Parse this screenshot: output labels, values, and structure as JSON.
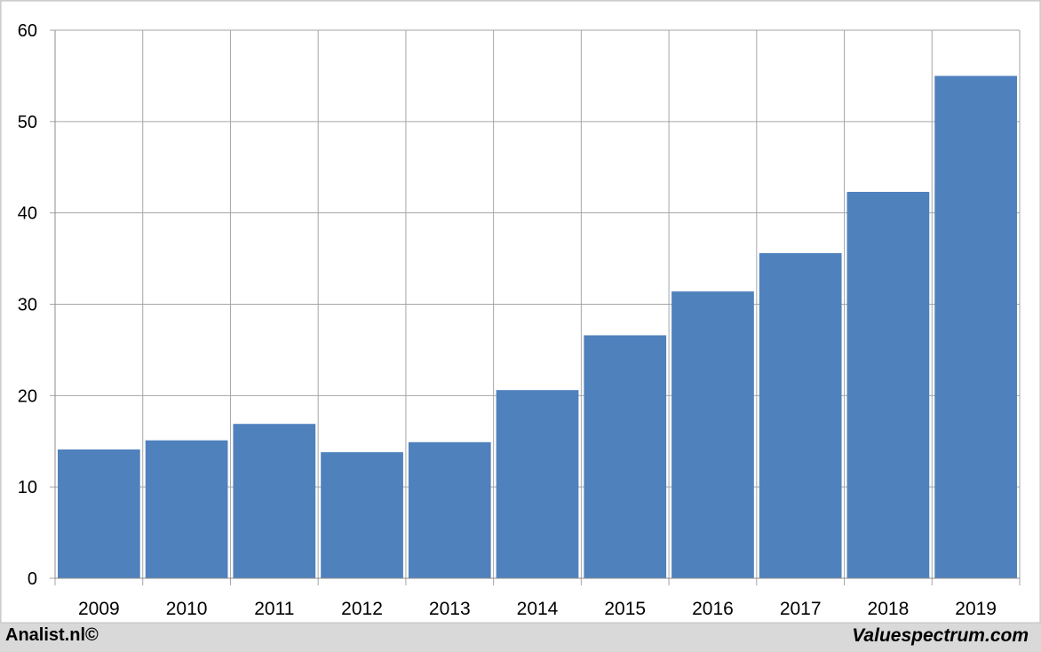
{
  "chart_data": {
    "type": "bar",
    "categories": [
      "2009",
      "2010",
      "2011",
      "2012",
      "2013",
      "2014",
      "2015",
      "2016",
      "2017",
      "2018",
      "2019"
    ],
    "values": [
      14.1,
      15.1,
      16.9,
      13.8,
      14.9,
      20.6,
      26.6,
      31.4,
      35.6,
      42.3,
      55.0
    ],
    "title": "",
    "xlabel": "",
    "ylabel": "",
    "ylim": [
      0,
      60
    ],
    "yticks": [
      "0",
      "10",
      "20",
      "30",
      "40",
      "50",
      "60"
    ],
    "grid": true,
    "bar_color": "#4f81bd"
  },
  "footer": {
    "left_text": "Analist.nl©",
    "right_text": "Valuespectrum.com"
  }
}
